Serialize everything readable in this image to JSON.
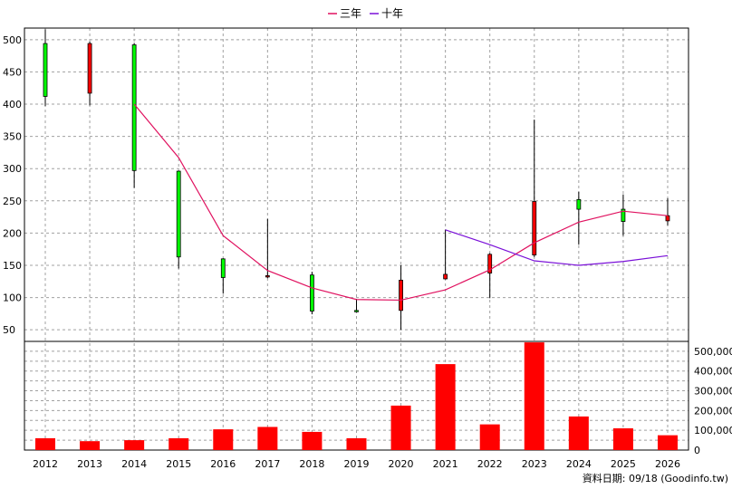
{
  "chart_data": {
    "type": "candlestick+volume",
    "legend": [
      {
        "name": "三年",
        "color": "#e0115f"
      },
      {
        "name": "十年",
        "color": "#7a10d8"
      }
    ],
    "x_labels": [
      "2012",
      "2013",
      "2014",
      "2015",
      "2016",
      "2017",
      "2018",
      "2019",
      "2020",
      "2021",
      "2022",
      "2023",
      "2024",
      "2025",
      "2026"
    ],
    "price_axis": {
      "ticks": [
        50,
        100,
        150,
        200,
        250,
        300,
        350,
        400,
        450,
        500
      ],
      "range": [
        32,
        518
      ]
    },
    "volume_axis": {
      "ticks": [
        "0",
        "100,000",
        "200,000",
        "300,000",
        "400,000",
        "500,000"
      ],
      "range": [
        0,
        550000
      ]
    },
    "candles": [
      {
        "year": "2012",
        "open": 412,
        "high": 516,
        "low": 397,
        "close": 494
      },
      {
        "year": "2013",
        "open": 494,
        "high": 497,
        "low": 398,
        "close": 417
      },
      {
        "year": "2014",
        "open": 297,
        "high": 495,
        "low": 270,
        "close": 492
      },
      {
        "year": "2015",
        "open": 163,
        "high": 297,
        "low": 145,
        "close": 296
      },
      {
        "year": "2016",
        "open": 131,
        "high": 161,
        "low": 106,
        "close": 160
      },
      {
        "year": "2017",
        "open": 134,
        "high": 222,
        "low": 130,
        "close": 133
      },
      {
        "year": "2018",
        "open": 79,
        "high": 140,
        "low": 74,
        "close": 135
      },
      {
        "year": "2019",
        "open": 80,
        "high": 98,
        "low": 77,
        "close": 80
      },
      {
        "year": "2020",
        "open": 127,
        "high": 150,
        "low": 50,
        "close": 80
      },
      {
        "year": "2021",
        "open": 136,
        "high": 205,
        "low": 128,
        "close": 129
      },
      {
        "year": "2022",
        "open": 167,
        "high": 169,
        "low": 99,
        "close": 138
      },
      {
        "year": "2023",
        "open": 249,
        "high": 376,
        "low": 163,
        "close": 166
      },
      {
        "year": "2024",
        "open": 237,
        "high": 264,
        "low": 182,
        "close": 252
      },
      {
        "year": "2025",
        "open": 218,
        "high": 260,
        "low": 196,
        "close": 237
      },
      {
        "year": "2026",
        "open": 227,
        "high": 254,
        "low": 212,
        "close": 219
      }
    ],
    "ma_3y": [
      {
        "year": "2014",
        "value": 400
      },
      {
        "year": "2015",
        "value": 317
      },
      {
        "year": "2016",
        "value": 196
      },
      {
        "year": "2017",
        "value": 142
      },
      {
        "year": "2018",
        "value": 115
      },
      {
        "year": "2019",
        "value": 97
      },
      {
        "year": "2020",
        "value": 96
      },
      {
        "year": "2021",
        "value": 112
      },
      {
        "year": "2022",
        "value": 143
      },
      {
        "year": "2023",
        "value": 185
      },
      {
        "year": "2024",
        "value": 217
      },
      {
        "year": "2025",
        "value": 234
      },
      {
        "year": "2026",
        "value": 227
      }
    ],
    "ma_10y": [
      {
        "year": "2021",
        "value": 205
      },
      {
        "year": "2022",
        "value": 182
      },
      {
        "year": "2023",
        "value": 157
      },
      {
        "year": "2024",
        "value": 150
      },
      {
        "year": "2025",
        "value": 156
      },
      {
        "year": "2026",
        "value": 165
      }
    ],
    "volumes": [
      {
        "year": "2012",
        "value": 60000
      },
      {
        "year": "2013",
        "value": 45000
      },
      {
        "year": "2014",
        "value": 50000
      },
      {
        "year": "2015",
        "value": 60000
      },
      {
        "year": "2016",
        "value": 105000
      },
      {
        "year": "2017",
        "value": 117000
      },
      {
        "year": "2018",
        "value": 92000
      },
      {
        "year": "2019",
        "value": 60000
      },
      {
        "year": "2020",
        "value": 225000
      },
      {
        "year": "2021",
        "value": 435000
      },
      {
        "year": "2022",
        "value": 130000
      },
      {
        "year": "2023",
        "value": 545000
      },
      {
        "year": "2024",
        "value": 170000
      },
      {
        "year": "2025",
        "value": 110000
      },
      {
        "year": "2026",
        "value": 75000
      }
    ],
    "colors": {
      "up": "#00ff00",
      "down": "#ff0000",
      "volume": "#ff0000",
      "wick": "#000000"
    }
  },
  "footer": {
    "text": "資料日期: 09/18 (Goodinfo.tw)"
  }
}
